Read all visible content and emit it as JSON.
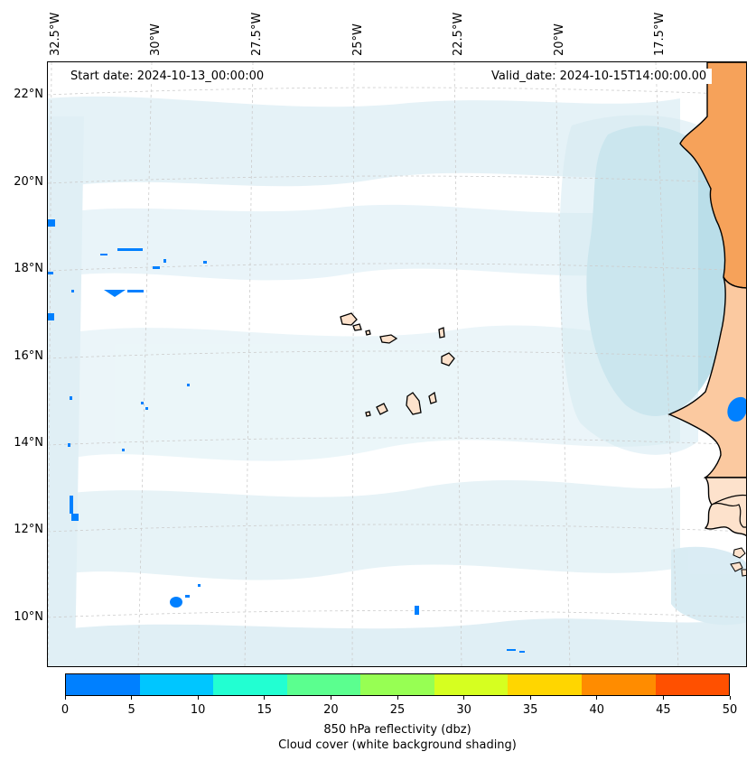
{
  "header": {
    "start_date": "Start date: 2024-10-13_00:00:00",
    "valid_date": "Valid_date: 2024-10-15T14:00:00.00"
  },
  "lon_labels": [
    "32.5°W",
    "30°W",
    "27.5°W",
    "25°W",
    "22.5°W",
    "20°W",
    "17.5°W"
  ],
  "lat_labels": [
    "22°N",
    "20°N",
    "18°N",
    "16°N",
    "14°N",
    "12°N",
    "10°N"
  ],
  "colorbar": {
    "ticks": [
      "0",
      "5",
      "10",
      "15",
      "20",
      "25",
      "30",
      "35",
      "40",
      "45",
      "50"
    ],
    "colors": [
      "#0080ff",
      "#00c6ff",
      "#22ffd2",
      "#5bff8f",
      "#97ff53",
      "#d6ff20",
      "#ffd600",
      "#ff8c00",
      "#ff5000"
    ],
    "label": "850 hPa reflectivity (dbz)",
    "sublabel": "Cloud cover (white background shading)"
  },
  "map_colors": {
    "ocean": "#ffffff",
    "cloud": "#d6ecf3",
    "cloud_dense": "#aed9e6",
    "land_warm": "#f6a25a",
    "land_light": "#fde2cc",
    "coast": "#000000"
  }
}
